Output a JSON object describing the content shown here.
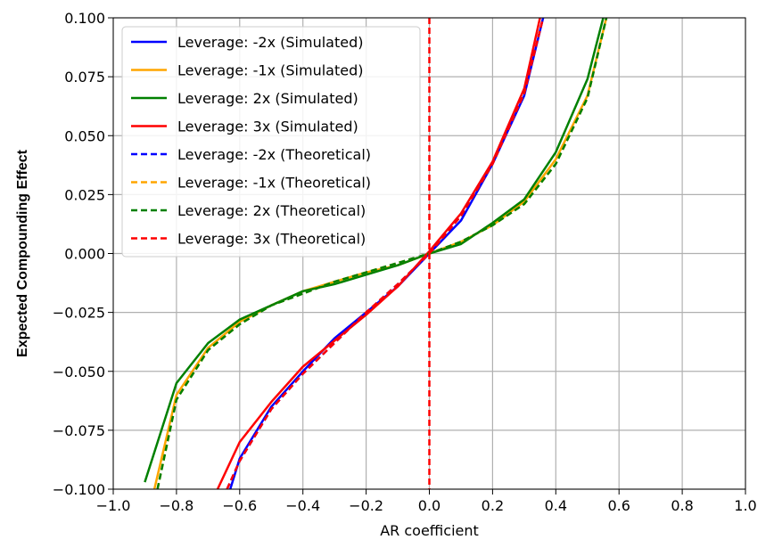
{
  "chart_data": {
    "type": "line",
    "title": "",
    "xlabel": "AR coefficient",
    "ylabel": "Expected Compounding Effect",
    "xlim": [
      -1.0,
      1.0
    ],
    "ylim": [
      -0.1,
      0.1
    ],
    "xticks": [
      -1.0,
      -0.8,
      -0.6,
      -0.4,
      -0.2,
      0.0,
      0.2,
      0.4,
      0.6,
      0.8,
      1.0
    ],
    "xtick_labels": [
      "−1.0",
      "−0.8",
      "−0.6",
      "−0.4",
      "−0.2",
      "0.0",
      "0.2",
      "0.4",
      "0.6",
      "0.8",
      "1.0"
    ],
    "yticks": [
      -0.1,
      -0.075,
      -0.05,
      -0.025,
      0.0,
      0.025,
      0.05,
      0.075,
      0.1
    ],
    "ytick_labels": [
      "−0.100",
      "−0.075",
      "−0.050",
      "−0.025",
      "0.000",
      "0.025",
      "0.050",
      "0.075",
      "0.100"
    ],
    "grid": true,
    "legend_position": "top-left",
    "vline": {
      "x": 0.0,
      "color": "#ff0000",
      "style": "dashed"
    },
    "series": [
      {
        "name": "Leverage: -2x (Simulated)",
        "color": "#0000ff",
        "style": "solid",
        "x": [
          -0.63,
          -0.6,
          -0.5,
          -0.4,
          -0.3,
          -0.2,
          -0.1,
          0.0,
          0.1,
          0.2,
          0.3,
          0.36
        ],
        "y": [
          -0.1,
          -0.087,
          -0.065,
          -0.05,
          -0.036,
          -0.025,
          -0.014,
          0.0,
          0.014,
          0.038,
          0.067,
          0.1
        ]
      },
      {
        "name": "Leverage: -1x (Simulated)",
        "color": "#ffa500",
        "style": "solid",
        "x": [
          -0.87,
          -0.8,
          -0.7,
          -0.6,
          -0.5,
          -0.4,
          -0.3,
          -0.2,
          -0.1,
          0.0,
          0.1,
          0.2,
          0.3,
          0.4,
          0.5,
          0.56
        ],
        "y": [
          -0.1,
          -0.06,
          -0.04,
          -0.029,
          -0.022,
          -0.016,
          -0.012,
          -0.008,
          -0.005,
          0.0,
          0.005,
          0.012,
          0.022,
          0.04,
          0.067,
          0.1
        ]
      },
      {
        "name": "Leverage: 2x (Simulated)",
        "color": "#008000",
        "style": "solid",
        "x": [
          -0.9,
          -0.8,
          -0.7,
          -0.6,
          -0.5,
          -0.4,
          -0.3,
          -0.2,
          -0.1,
          0.0,
          0.1,
          0.2,
          0.3,
          0.4,
          0.5,
          0.55
        ],
        "y": [
          -0.097,
          -0.055,
          -0.038,
          -0.028,
          -0.022,
          -0.016,
          -0.013,
          -0.009,
          -0.005,
          0.0,
          0.004,
          0.013,
          0.023,
          0.043,
          0.074,
          0.1
        ]
      },
      {
        "name": "Leverage: 3x (Simulated)",
        "color": "#ff0000",
        "style": "solid",
        "x": [
          -0.67,
          -0.6,
          -0.5,
          -0.4,
          -0.3,
          -0.2,
          -0.1,
          0.0,
          0.1,
          0.2,
          0.3,
          0.35
        ],
        "y": [
          -0.1,
          -0.08,
          -0.063,
          -0.048,
          -0.037,
          -0.026,
          -0.014,
          0.001,
          0.017,
          0.039,
          0.07,
          0.1
        ]
      },
      {
        "name": "Leverage: -2x (Theoretical)",
        "color": "#0000ff",
        "style": "dashed",
        "x": [
          -0.64,
          -0.6,
          -0.5,
          -0.4,
          -0.3,
          -0.2,
          -0.1,
          0.0,
          0.1,
          0.2,
          0.3,
          0.36
        ],
        "y": [
          -0.1,
          -0.088,
          -0.066,
          -0.051,
          -0.038,
          -0.025,
          -0.013,
          0.0,
          0.016,
          0.038,
          0.068,
          0.1
        ]
      },
      {
        "name": "Leverage: -1x (Theoretical)",
        "color": "#ffa500",
        "style": "dashed",
        "x": [
          -0.86,
          -0.8,
          -0.7,
          -0.6,
          -0.5,
          -0.4,
          -0.3,
          -0.2,
          -0.1,
          0.0,
          0.1,
          0.2,
          0.3,
          0.4,
          0.5,
          0.56
        ],
        "y": [
          -0.1,
          -0.062,
          -0.041,
          -0.03,
          -0.022,
          -0.017,
          -0.012,
          -0.008,
          -0.004,
          0.0,
          0.005,
          0.012,
          0.021,
          0.038,
          0.066,
          0.1
        ]
      },
      {
        "name": "Leverage: 2x (Theoretical)",
        "color": "#008000",
        "style": "dashed",
        "x": [
          -0.86,
          -0.8,
          -0.7,
          -0.6,
          -0.5,
          -0.4,
          -0.3,
          -0.2,
          -0.1,
          0.0,
          0.1,
          0.2,
          0.3,
          0.4,
          0.5,
          0.56
        ],
        "y": [
          -0.1,
          -0.062,
          -0.041,
          -0.03,
          -0.022,
          -0.017,
          -0.012,
          -0.008,
          -0.004,
          0.0,
          0.005,
          0.012,
          0.021,
          0.038,
          0.066,
          0.1
        ]
      },
      {
        "name": "Leverage: 3x (Theoretical)",
        "color": "#ff0000",
        "style": "dashed",
        "x": [
          -0.64,
          -0.6,
          -0.5,
          -0.4,
          -0.3,
          -0.2,
          -0.1,
          0.0,
          0.1,
          0.2,
          0.3,
          0.36
        ],
        "y": [
          -0.1,
          -0.088,
          -0.066,
          -0.051,
          -0.038,
          -0.025,
          -0.013,
          0.0,
          0.016,
          0.038,
          0.068,
          0.1
        ]
      }
    ]
  }
}
